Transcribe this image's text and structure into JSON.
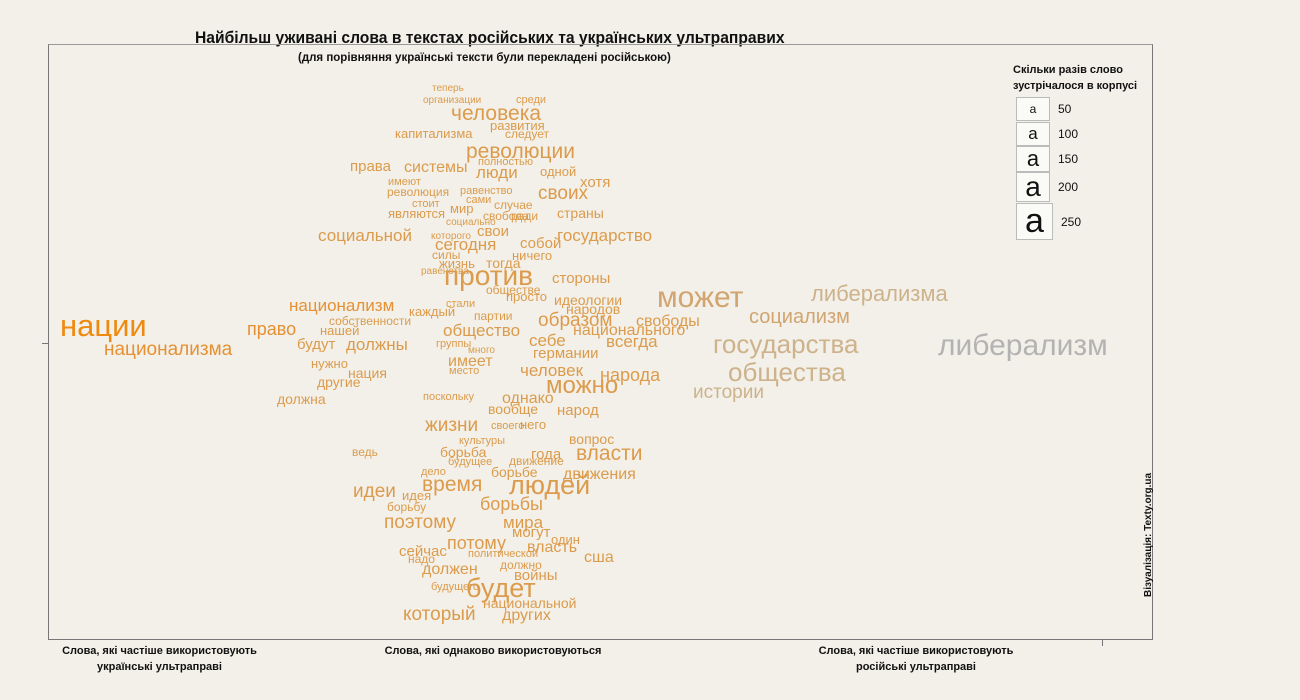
{
  "chart_data": {
    "type": "wordcloud",
    "title": "Найбільш уживані слова в текстах російських та українських ультраправих",
    "subtitle": "(для порівняння українські тексти були перекладені російською)",
    "legend": {
      "title": "Скільки разів слово зустрічалося в корпусі",
      "sample_glyph": "а",
      "values": [
        50,
        100,
        150,
        200,
        250
      ]
    },
    "x_labels": [
      "Слова, які частіше використовують українські ультраправі",
      "Слова, які однаково використовуються",
      "Слова, які частіше використовують російські ультраправі"
    ],
    "colors": {
      "ukrainian": "#ef8a10",
      "neutral": "#dc9b4c",
      "russian": "#cdb28c",
      "russian_strong": "#b3b3b3"
    },
    "words": [
      {
        "text": "теперь",
        "size": 10,
        "color": "#dc9b4c"
      },
      {
        "text": "организации",
        "size": 10,
        "color": "#dc9b4c"
      },
      {
        "text": "среди",
        "size": 11,
        "color": "#dc9b4c"
      },
      {
        "text": "человека",
        "size": 21,
        "color": "#dc9b4c"
      },
      {
        "text": "развития",
        "size": 13,
        "color": "#dc9b4c"
      },
      {
        "text": "капитализма",
        "size": 13,
        "color": "#dc9b4c"
      },
      {
        "text": "следует",
        "size": 12,
        "color": "#dc9b4c"
      },
      {
        "text": "революции",
        "size": 21,
        "color": "#dc9b4c"
      },
      {
        "text": "полностью",
        "size": 11,
        "color": "#dc9b4c"
      },
      {
        "text": "права",
        "size": 15,
        "color": "#dc9b4c"
      },
      {
        "text": "системы",
        "size": 16,
        "color": "#dc9b4c"
      },
      {
        "text": "люди",
        "size": 17,
        "color": "#dc9b4c"
      },
      {
        "text": "одной",
        "size": 13,
        "color": "#dc9b4c"
      },
      {
        "text": "имеют",
        "size": 11,
        "color": "#dc9b4c"
      },
      {
        "text": "хотя",
        "size": 15,
        "color": "#dc9b4c"
      },
      {
        "text": "революция",
        "size": 12,
        "color": "#dc9b4c"
      },
      {
        "text": "равенство",
        "size": 11,
        "color": "#dc9b4c"
      },
      {
        "text": "своих",
        "size": 19,
        "color": "#dc9b4c"
      },
      {
        "text": "стоит",
        "size": 11,
        "color": "#dc9b4c"
      },
      {
        "text": "сами",
        "size": 11,
        "color": "#dc9b4c"
      },
      {
        "text": "случае",
        "size": 12,
        "color": "#dc9b4c"
      },
      {
        "text": "мир",
        "size": 13,
        "color": "#dc9b4c"
      },
      {
        "text": "являются",
        "size": 13,
        "color": "#dc9b4c"
      },
      {
        "text": "свобода",
        "size": 12,
        "color": "#dc9b4c"
      },
      {
        "text": "ради",
        "size": 12,
        "color": "#dc9b4c"
      },
      {
        "text": "страны",
        "size": 14,
        "color": "#dc9b4c"
      },
      {
        "text": "социально",
        "size": 10,
        "color": "#dc9b4c"
      },
      {
        "text": "свои",
        "size": 15,
        "color": "#dc9b4c"
      },
      {
        "text": "которого",
        "size": 10,
        "color": "#dc9b4c"
      },
      {
        "text": "социальной",
        "size": 17,
        "color": "#dc9b4c"
      },
      {
        "text": "сегодня",
        "size": 17,
        "color": "#dc9b4c"
      },
      {
        "text": "собой",
        "size": 15,
        "color": "#dc9b4c"
      },
      {
        "text": "государство",
        "size": 17,
        "color": "#dc9b4c"
      },
      {
        "text": "силы",
        "size": 12,
        "color": "#dc9b4c"
      },
      {
        "text": "ничего",
        "size": 13,
        "color": "#dc9b4c"
      },
      {
        "text": "жизнь",
        "size": 13,
        "color": "#dc9b4c"
      },
      {
        "text": "тогда",
        "size": 14,
        "color": "#dc9b4c"
      },
      {
        "text": "равенства",
        "size": 10,
        "color": "#dc9b4c"
      },
      {
        "text": "против",
        "size": 28,
        "color": "#dc9b4c"
      },
      {
        "text": "стороны",
        "size": 15,
        "color": "#dc9b4c"
      },
      {
        "text": "обществе",
        "size": 12,
        "color": "#dc9b4c"
      },
      {
        "text": "просто",
        "size": 13,
        "color": "#dc9b4c"
      },
      {
        "text": "идеологии",
        "size": 14,
        "color": "#dc9b4c"
      },
      {
        "text": "может",
        "size": 30,
        "color": "#d1a470"
      },
      {
        "text": "либерализма",
        "size": 22,
        "color": "#cdb28c"
      },
      {
        "text": "национализм",
        "size": 17,
        "color": "#e59133"
      },
      {
        "text": "стали",
        "size": 11,
        "color": "#dc9b4c"
      },
      {
        "text": "народов",
        "size": 14,
        "color": "#dc9b4c"
      },
      {
        "text": "каждый",
        "size": 13,
        "color": "#dc9b4c"
      },
      {
        "text": "нации",
        "size": 31,
        "color": "#ef8a10"
      },
      {
        "text": "собственности",
        "size": 12,
        "color": "#dc9b4c"
      },
      {
        "text": "партии",
        "size": 12,
        "color": "#dc9b4c"
      },
      {
        "text": "образом",
        "size": 19,
        "color": "#dc9b4c"
      },
      {
        "text": "свободы",
        "size": 16,
        "color": "#dc9b4c"
      },
      {
        "text": "социализм",
        "size": 20,
        "color": "#d1a470"
      },
      {
        "text": "право",
        "size": 18,
        "color": "#e59133"
      },
      {
        "text": "нашей",
        "size": 13,
        "color": "#dc9b4c"
      },
      {
        "text": "общество",
        "size": 17,
        "color": "#dc9b4c"
      },
      {
        "text": "национального",
        "size": 16,
        "color": "#dc9b4c"
      },
      {
        "text": "будут",
        "size": 15,
        "color": "#dc9b4c"
      },
      {
        "text": "должны",
        "size": 17,
        "color": "#dc9b4c"
      },
      {
        "text": "группы",
        "size": 11,
        "color": "#dc9b4c"
      },
      {
        "text": "себе",
        "size": 17,
        "color": "#dc9b4c"
      },
      {
        "text": "всегда",
        "size": 17,
        "color": "#dc9b4c"
      },
      {
        "text": "государства",
        "size": 26,
        "color": "#cdb28c"
      },
      {
        "text": "национализма",
        "size": 19,
        "color": "#e59133"
      },
      {
        "text": "много",
        "size": 10,
        "color": "#dc9b4c"
      },
      {
        "text": "германии",
        "size": 15,
        "color": "#dc9b4c"
      },
      {
        "text": "либерализм",
        "size": 30,
        "color": "#b3b3b3"
      },
      {
        "text": "имеет",
        "size": 16,
        "color": "#dc9b4c"
      },
      {
        "text": "нужно",
        "size": 13,
        "color": "#dc9b4c"
      },
      {
        "text": "место",
        "size": 11,
        "color": "#dc9b4c"
      },
      {
        "text": "человек",
        "size": 17,
        "color": "#dc9b4c"
      },
      {
        "text": "народа",
        "size": 18,
        "color": "#dc9b4c"
      },
      {
        "text": "общества",
        "size": 26,
        "color": "#cdb28c"
      },
      {
        "text": "нация",
        "size": 14,
        "color": "#dc9b4c"
      },
      {
        "text": "другие",
        "size": 14,
        "color": "#dc9b4c"
      },
      {
        "text": "можно",
        "size": 24,
        "color": "#dc9b4c"
      },
      {
        "text": "истории",
        "size": 19,
        "color": "#cdb28c"
      },
      {
        "text": "должна",
        "size": 14,
        "color": "#dc9b4c"
      },
      {
        "text": "поскольку",
        "size": 11,
        "color": "#dc9b4c"
      },
      {
        "text": "однако",
        "size": 16,
        "color": "#dc9b4c"
      },
      {
        "text": "вообще",
        "size": 14,
        "color": "#dc9b4c"
      },
      {
        "text": "народ",
        "size": 15,
        "color": "#dc9b4c"
      },
      {
        "text": "жизни",
        "size": 19,
        "color": "#dc9b4c"
      },
      {
        "text": "своего",
        "size": 11,
        "color": "#dc9b4c"
      },
      {
        "text": "него",
        "size": 13,
        "color": "#dc9b4c"
      },
      {
        "text": "культуры",
        "size": 11,
        "color": "#dc9b4c"
      },
      {
        "text": "вопрос",
        "size": 14,
        "color": "#dc9b4c"
      },
      {
        "text": "ведь",
        "size": 12,
        "color": "#dc9b4c"
      },
      {
        "text": "борьба",
        "size": 14,
        "color": "#dc9b4c"
      },
      {
        "text": "года",
        "size": 15,
        "color": "#dc9b4c"
      },
      {
        "text": "власти",
        "size": 21,
        "color": "#dc9b4c"
      },
      {
        "text": "будущее",
        "size": 11,
        "color": "#dc9b4c"
      },
      {
        "text": "движение",
        "size": 12,
        "color": "#dc9b4c"
      },
      {
        "text": "дело",
        "size": 11,
        "color": "#dc9b4c"
      },
      {
        "text": "борьбе",
        "size": 14,
        "color": "#dc9b4c"
      },
      {
        "text": "движения",
        "size": 16,
        "color": "#dc9b4c"
      },
      {
        "text": "время",
        "size": 21,
        "color": "#dc9b4c"
      },
      {
        "text": "людей",
        "size": 27,
        "color": "#dc9b4c"
      },
      {
        "text": "идеи",
        "size": 19,
        "color": "#dc9b4c"
      },
      {
        "text": "идея",
        "size": 13,
        "color": "#dc9b4c"
      },
      {
        "text": "борьбу",
        "size": 12,
        "color": "#dc9b4c"
      },
      {
        "text": "борьбы",
        "size": 18,
        "color": "#dc9b4c"
      },
      {
        "text": "поэтому",
        "size": 19,
        "color": "#dc9b4c"
      },
      {
        "text": "мира",
        "size": 17,
        "color": "#dc9b4c"
      },
      {
        "text": "могут",
        "size": 15,
        "color": "#dc9b4c"
      },
      {
        "text": "один",
        "size": 13,
        "color": "#dc9b4c"
      },
      {
        "text": "потому",
        "size": 18,
        "color": "#dc9b4c"
      },
      {
        "text": "власть",
        "size": 16,
        "color": "#dc9b4c"
      },
      {
        "text": "сейчас",
        "size": 15,
        "color": "#dc9b4c"
      },
      {
        "text": "политической",
        "size": 11,
        "color": "#dc9b4c"
      },
      {
        "text": "сша",
        "size": 16,
        "color": "#dc9b4c"
      },
      {
        "text": "надо",
        "size": 12,
        "color": "#dc9b4c"
      },
      {
        "text": "должен",
        "size": 16,
        "color": "#dc9b4c"
      },
      {
        "text": "должно",
        "size": 12,
        "color": "#dc9b4c"
      },
      {
        "text": "войны",
        "size": 15,
        "color": "#dc9b4c"
      },
      {
        "text": "будущего",
        "size": 11,
        "color": "#dc9b4c"
      },
      {
        "text": "будет",
        "size": 27,
        "color": "#dc9b4c"
      },
      {
        "text": "национальной",
        "size": 14,
        "color": "#dc9b4c"
      },
      {
        "text": "который",
        "size": 19,
        "color": "#dc9b4c"
      },
      {
        "text": "других",
        "size": 16,
        "color": "#dc9b4c"
      }
    ]
  },
  "credit": "Візуалізація: Texty.org.ua"
}
